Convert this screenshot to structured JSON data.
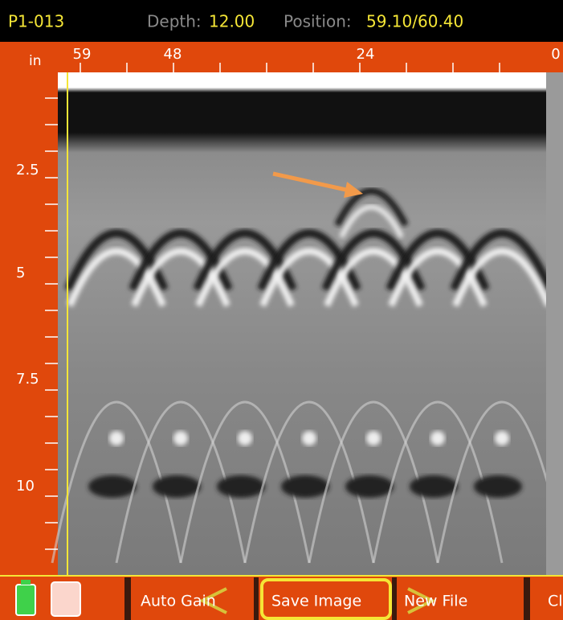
{
  "status_bar": {
    "file": "P1-013",
    "depth_label": "Depth:",
    "depth": "12.00",
    "position_label": "Position:",
    "position": "59.10/60.40"
  },
  "ruler": {
    "unit": "in",
    "top_labels": [
      "59",
      "48",
      "24",
      "0"
    ],
    "left_labels": [
      "2.5",
      "5",
      "7.5",
      "10"
    ]
  },
  "buttons": [
    "Auto Gain",
    "Save Image",
    "New File",
    "Clo"
  ]
}
